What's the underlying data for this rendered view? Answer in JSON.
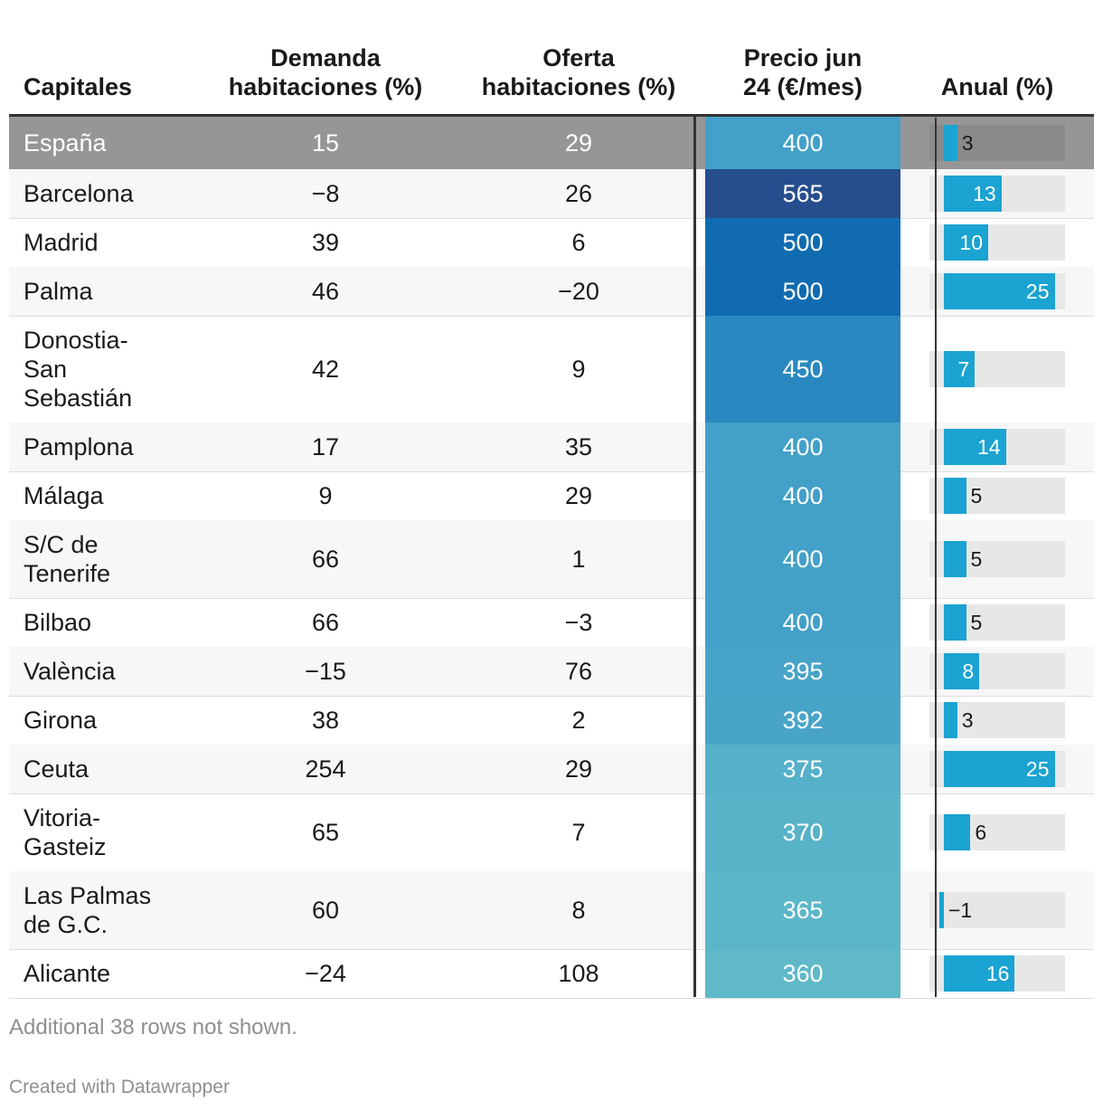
{
  "chart_data": {
    "type": "table",
    "columns": [
      "Capitales",
      "Demanda habitaciones (%)",
      "Oferta habitaciones (%)",
      "Precio jun 24 (€/mes)",
      "Anual (%)"
    ],
    "headers": {
      "capitales": [
        "Capitales"
      ],
      "demanda": [
        "Demanda",
        "habitaciones (%)"
      ],
      "oferta": [
        "Oferta",
        "habitaciones (%)"
      ],
      "precio": [
        "Precio jun",
        "24 (€/mes)"
      ],
      "anual": [
        "Anual (%)"
      ]
    },
    "rows": [
      {
        "name": [
          "España"
        ],
        "demanda": "15",
        "oferta": "29",
        "precio": 400,
        "anual": 3,
        "anual_label": "3",
        "highlight": true
      },
      {
        "name": [
          "Barcelona"
        ],
        "demanda": "−8",
        "oferta": "26",
        "precio": 565,
        "anual": 13,
        "anual_label": "13"
      },
      {
        "name": [
          "Madrid"
        ],
        "demanda": "39",
        "oferta": "6",
        "precio": 500,
        "anual": 10,
        "anual_label": "10"
      },
      {
        "name": [
          "Palma"
        ],
        "demanda": "46",
        "oferta": "−20",
        "precio": 500,
        "anual": 25,
        "anual_label": "25"
      },
      {
        "name": [
          "Donostia-",
          "San",
          "Sebastián"
        ],
        "demanda": "42",
        "oferta": "9",
        "precio": 450,
        "anual": 7,
        "anual_label": "7"
      },
      {
        "name": [
          "Pamplona"
        ],
        "demanda": "17",
        "oferta": "35",
        "precio": 400,
        "anual": 14,
        "anual_label": "14"
      },
      {
        "name": [
          "Málaga"
        ],
        "demanda": "9",
        "oferta": "29",
        "precio": 400,
        "anual": 5,
        "anual_label": "5"
      },
      {
        "name": [
          "S/C de",
          "Tenerife"
        ],
        "demanda": "66",
        "oferta": "1",
        "precio": 400,
        "anual": 5,
        "anual_label": "5"
      },
      {
        "name": [
          "Bilbao"
        ],
        "demanda": "66",
        "oferta": "−3",
        "precio": 400,
        "anual": 5,
        "anual_label": "5"
      },
      {
        "name": [
          "València"
        ],
        "demanda": "−15",
        "oferta": "76",
        "precio": 395,
        "anual": 8,
        "anual_label": "8"
      },
      {
        "name": [
          "Girona"
        ],
        "demanda": "38",
        "oferta": "2",
        "precio": 392,
        "anual": 3,
        "anual_label": "3"
      },
      {
        "name": [
          "Ceuta"
        ],
        "demanda": "254",
        "oferta": "29",
        "precio": 375,
        "anual": 25,
        "anual_label": "25"
      },
      {
        "name": [
          "Vitoria-",
          "Gasteiz"
        ],
        "demanda": "65",
        "oferta": "7",
        "precio": 370,
        "anual": 6,
        "anual_label": "6"
      },
      {
        "name": [
          "Las Palmas",
          "de G.C."
        ],
        "demanda": "60",
        "oferta": "8",
        "precio": 365,
        "anual": -1,
        "anual_label": "−1"
      },
      {
        "name": [
          "Alicante"
        ],
        "demanda": "−24",
        "oferta": "108",
        "precio": 360,
        "anual": 16,
        "anual_label": "16"
      }
    ],
    "anual_range": [
      -1,
      27
    ]
  },
  "footer": {
    "note": "Additional 38 rows not shown.",
    "credit": "Created with Datawrapper"
  },
  "colors": {
    "bar": "#1ba3d1",
    "highlight_row": "#969696",
    "price_scale": {
      "360": "#5fb9c9",
      "400": "#43a0c8",
      "450": "#2a88c0",
      "500": "#106bb0",
      "565": "#264d8c"
    }
  }
}
